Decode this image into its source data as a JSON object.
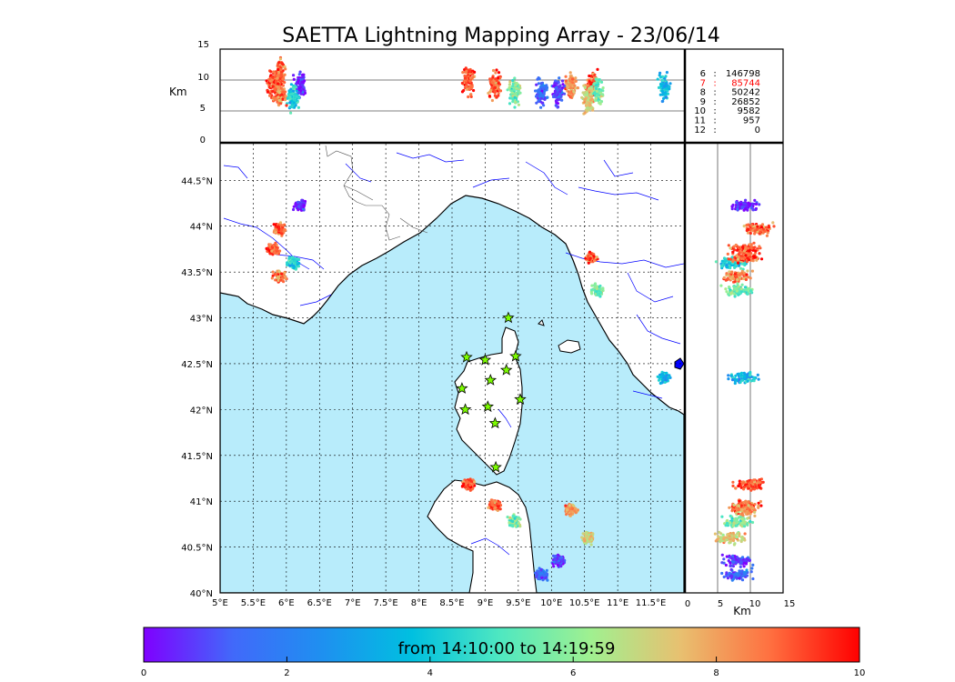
{
  "chart_data": {
    "type": "scatter",
    "title": "SAETTA Lightning Mapping Array - 23/06/14",
    "map": {
      "lon_ticks": [
        "5°E",
        "5.5°E",
        "6°E",
        "6.5°E",
        "7°E",
        "7.5°E",
        "8°E",
        "8.5°E",
        "9°E",
        "9.5°E",
        "10°E",
        "10.5°E",
        "11°E",
        "11.5°E"
      ],
      "lat_ticks": [
        "40°N",
        "40.5°N",
        "41°N",
        "41.5°N",
        "42°N",
        "42.5°N",
        "43°N",
        "43.5°N",
        "44°N",
        "44.5°N"
      ],
      "lon_range": [
        5,
        12
      ],
      "lat_range": [
        40,
        44.9
      ],
      "sea_color": "#b8ecfb",
      "land_color": "#ffffff"
    },
    "altitude_panel": {
      "ylabel": "Km",
      "y_ticks": [
        "0",
        "5",
        "10",
        "15"
      ],
      "ylim": [
        0,
        15
      ]
    },
    "side_panel": {
      "xlabel": "Km",
      "x_ticks": [
        "0",
        "5",
        "10",
        "15"
      ],
      "xlim": [
        0,
        15
      ]
    },
    "station_stats": [
      {
        "station": "6",
        "sep": ":",
        "count": "146798",
        "highlight": false
      },
      {
        "station": "7",
        "sep": ":",
        "count": "85744",
        "highlight": true
      },
      {
        "station": "8",
        "sep": ":",
        "count": "50242",
        "highlight": false
      },
      {
        "station": "9",
        "sep": ":",
        "count": "26852",
        "highlight": false
      },
      {
        "station": "10",
        "sep": ":",
        "count": "9582",
        "highlight": false
      },
      {
        "station": "11",
        "sep": ":",
        "count": "957",
        "highlight": false
      },
      {
        "station": "12",
        "sep": ":",
        "count": "0",
        "highlight": false
      }
    ],
    "stations": [
      {
        "lon": 9.35,
        "lat": 43.0
      },
      {
        "lon": 8.72,
        "lat": 42.57
      },
      {
        "lon": 9.0,
        "lat": 42.54
      },
      {
        "lon": 9.46,
        "lat": 42.58
      },
      {
        "lon": 9.32,
        "lat": 42.43
      },
      {
        "lon": 9.08,
        "lat": 42.32
      },
      {
        "lon": 8.65,
        "lat": 42.23
      },
      {
        "lon": 9.53,
        "lat": 42.11
      },
      {
        "lon": 9.04,
        "lat": 42.03
      },
      {
        "lon": 8.7,
        "lat": 42.0
      },
      {
        "lon": 9.15,
        "lat": 41.85
      },
      {
        "lon": 9.16,
        "lat": 41.37
      }
    ],
    "station_color": "#7cfc00",
    "clusters": [
      {
        "lon": 5.9,
        "lat": 43.97,
        "alt": 11,
        "hue": 8.8
      },
      {
        "lon": 5.8,
        "lat": 43.75,
        "alt": 9,
        "hue": 9.0
      },
      {
        "lon": 6.2,
        "lat": 44.22,
        "alt": 9,
        "hue": 0.4
      },
      {
        "lon": 6.1,
        "lat": 43.6,
        "alt": 7,
        "hue": 4.2
      },
      {
        "lon": 5.9,
        "lat": 43.45,
        "alt": 8,
        "hue": 8.6
      },
      {
        "lon": 10.6,
        "lat": 43.66,
        "alt": 9,
        "hue": 8.9
      },
      {
        "lon": 10.7,
        "lat": 43.3,
        "alt": 8,
        "hue": 5.5
      },
      {
        "lon": 8.75,
        "lat": 41.18,
        "alt": 10,
        "hue": 9.1
      },
      {
        "lon": 9.15,
        "lat": 40.95,
        "alt": 9,
        "hue": 8.7
      },
      {
        "lon": 9.45,
        "lat": 40.78,
        "alt": 8,
        "hue": 5.8
      },
      {
        "lon": 10.3,
        "lat": 40.9,
        "alt": 9,
        "hue": 8.2
      },
      {
        "lon": 10.1,
        "lat": 40.35,
        "alt": 8,
        "hue": 0.8
      },
      {
        "lon": 9.85,
        "lat": 40.2,
        "alt": 8,
        "hue": 1.2
      },
      {
        "lon": 10.55,
        "lat": 40.6,
        "alt": 7,
        "hue": 7.2
      },
      {
        "lon": 11.7,
        "lat": 42.35,
        "alt": 9,
        "hue": 3.5
      }
    ],
    "colorbar": {
      "label": "from 14:10:00 to 14:19:59",
      "ticks": [
        "0",
        "2",
        "4",
        "6",
        "8",
        "10"
      ],
      "range": [
        0,
        10
      ],
      "colormap": "rainbow"
    }
  }
}
